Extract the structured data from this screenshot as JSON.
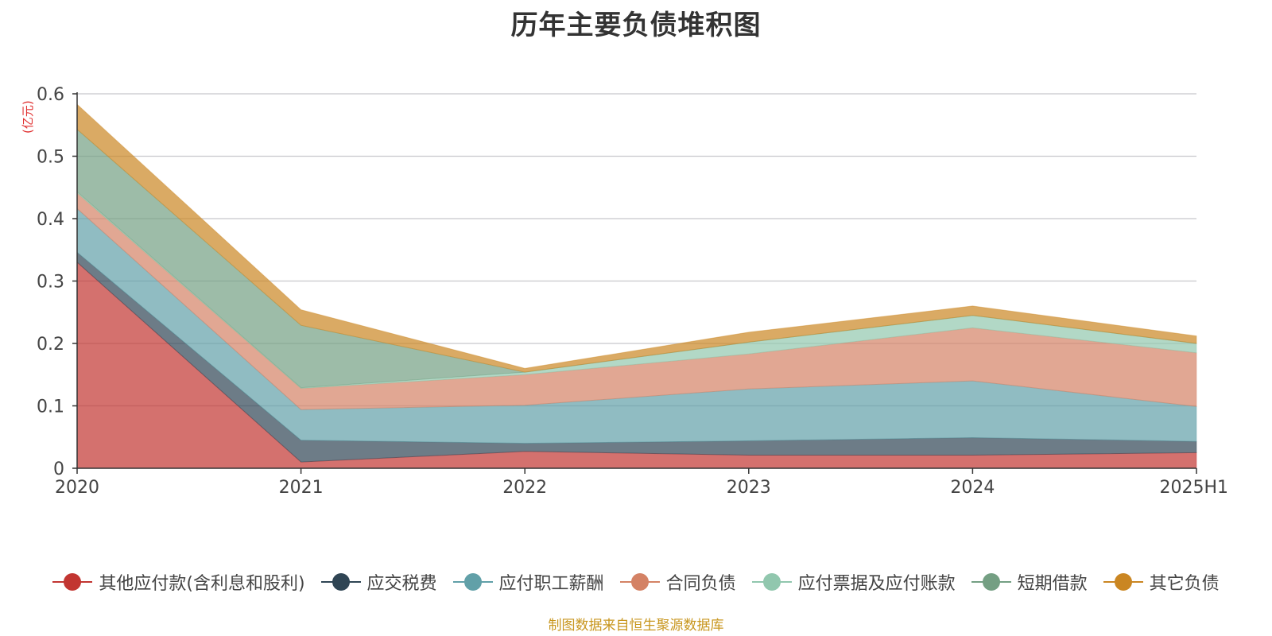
{
  "chart_data": {
    "type": "area",
    "stacked": true,
    "title": "历年主要负债堆积图",
    "ylabel": "(亿元)",
    "xlabel": "",
    "categories": [
      "2020",
      "2021",
      "2022",
      "2023",
      "2024",
      "2025H1"
    ],
    "y_ticks": [
      "0",
      "0.1",
      "0.2",
      "0.3",
      "0.4",
      "0.5",
      "0.6"
    ],
    "ylim": [
      0,
      0.6
    ],
    "grid": true,
    "legend_position": "bottom",
    "series": [
      {
        "name": "其他应付款(含利息和股利)",
        "color": "#c23531",
        "values": [
          0.33,
          0.01,
          0.027,
          0.021,
          0.021,
          0.025
        ]
      },
      {
        "name": "应交税费",
        "color": "#2f4554",
        "values": [
          0.016,
          0.035,
          0.013,
          0.023,
          0.028,
          0.018
        ]
      },
      {
        "name": "应付职工薪酬",
        "color": "#61a0a8",
        "values": [
          0.07,
          0.049,
          0.061,
          0.083,
          0.091,
          0.056
        ]
      },
      {
        "name": "合同负债",
        "color": "#d48265",
        "values": [
          0.025,
          0.034,
          0.049,
          0.056,
          0.085,
          0.086
        ]
      },
      {
        "name": "应付票据及应付账款",
        "color": "#91c7ae",
        "values": [
          0.002,
          0.001,
          0.004,
          0.019,
          0.02,
          0.015
        ]
      },
      {
        "name": "短期借款",
        "color": "#749f83",
        "values": [
          0.1,
          0.1,
          0.0,
          0.0,
          0.0,
          0.0
        ]
      },
      {
        "name": "其它负债",
        "color": "#ca8622",
        "values": [
          0.04,
          0.025,
          0.006,
          0.016,
          0.015,
          0.012
        ]
      }
    ]
  },
  "source_note": "制图数据来自恒生聚源数据库"
}
